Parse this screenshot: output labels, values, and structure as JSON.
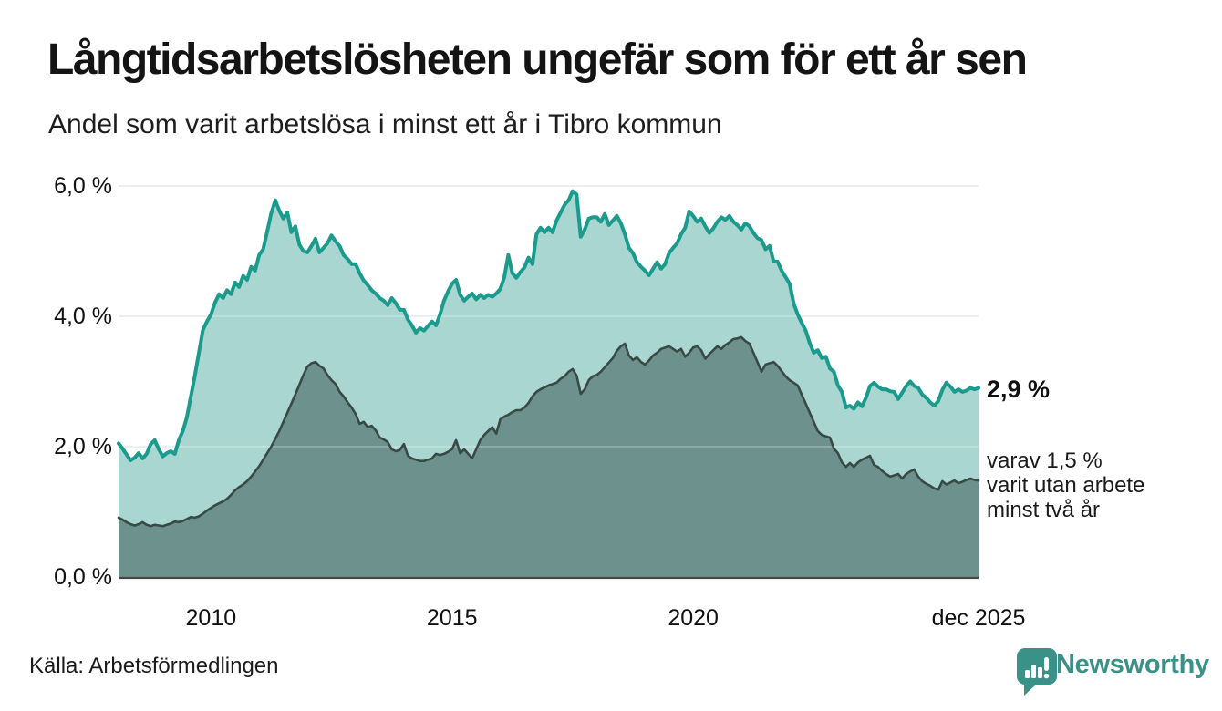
{
  "header": {
    "title": "Långtidsarbetslösheten ungefär som för ett år sen",
    "subtitle": "Andel som varit arbetslösa i minst ett år i Tibro kommun"
  },
  "chart_data": {
    "type": "area",
    "title": "Långtidsarbetslösheten ungefär som för ett år sen",
    "subtitle": "Andel som varit arbetslösa i minst ett år i Tibro kommun",
    "unit": "%",
    "time": {
      "start": "2008-02",
      "end": "2025-12",
      "frequency": "monthly"
    },
    "y_axis": {
      "range": [
        0,
        6.0
      ],
      "ticks": [
        {
          "value": 0,
          "label": "0,0 %"
        },
        {
          "value": 2,
          "label": "2,0 %"
        },
        {
          "value": 4,
          "label": "4,0 %"
        },
        {
          "value": 6,
          "label": "6,0 %"
        }
      ]
    },
    "x_axis": {
      "ticks": [
        {
          "year": 2010,
          "label": "2010"
        },
        {
          "year": 2015,
          "label": "2015"
        },
        {
          "year": 2020,
          "label": "2020"
        },
        {
          "label": "dec 2025",
          "at_end": true
        }
      ]
    },
    "series": [
      {
        "name": "arbetslösa minst ett år",
        "color": "#1a9b8d",
        "fill": "#a9d6d0",
        "stroke_width": 4,
        "end_value": 2.9,
        "values": [
          2.05,
          1.97,
          1.88,
          1.79,
          1.83,
          1.9,
          1.82,
          1.89,
          2.04,
          2.1,
          1.96,
          1.85,
          1.9,
          1.93,
          1.89,
          2.1,
          2.24,
          2.45,
          2.77,
          3.09,
          3.44,
          3.79,
          3.92,
          4.03,
          4.21,
          4.34,
          4.28,
          4.4,
          4.34,
          4.52,
          4.45,
          4.62,
          4.56,
          4.76,
          4.7,
          4.94,
          5.03,
          5.3,
          5.58,
          5.78,
          5.62,
          5.5,
          5.59,
          5.29,
          5.38,
          5.1,
          5.0,
          4.98,
          5.08,
          5.19,
          4.98,
          5.05,
          5.12,
          5.24,
          5.15,
          5.08,
          4.94,
          4.88,
          4.8,
          4.8,
          4.66,
          4.55,
          4.48,
          4.4,
          4.35,
          4.28,
          4.24,
          4.17,
          4.28,
          4.2,
          4.1,
          4.1,
          3.95,
          3.86,
          3.75,
          3.82,
          3.78,
          3.85,
          3.92,
          3.86,
          4.03,
          4.24,
          4.38,
          4.5,
          4.56,
          4.33,
          4.24,
          4.3,
          4.35,
          4.26,
          4.33,
          4.28,
          4.33,
          4.3,
          4.35,
          4.42,
          4.6,
          4.94,
          4.66,
          4.59,
          4.68,
          4.75,
          4.9,
          4.8,
          5.26,
          5.36,
          5.29,
          5.36,
          5.29,
          5.47,
          5.59,
          5.71,
          5.78,
          5.92,
          5.87,
          5.22,
          5.33,
          5.5,
          5.52,
          5.52,
          5.45,
          5.57,
          5.4,
          5.47,
          5.54,
          5.43,
          5.26,
          5.05,
          4.97,
          4.83,
          4.76,
          4.7,
          4.63,
          4.73,
          4.83,
          4.73,
          4.8,
          4.97,
          5.05,
          5.12,
          5.26,
          5.36,
          5.61,
          5.54,
          5.45,
          5.5,
          5.38,
          5.28,
          5.35,
          5.45,
          5.52,
          5.48,
          5.54,
          5.45,
          5.4,
          5.33,
          5.43,
          5.38,
          5.28,
          5.2,
          5.17,
          5.03,
          5.08,
          4.84,
          4.84,
          4.7,
          4.6,
          4.5,
          4.2,
          4.03,
          3.9,
          3.78,
          3.59,
          3.44,
          3.48,
          3.36,
          3.38,
          3.2,
          3.15,
          2.94,
          2.84,
          2.6,
          2.63,
          2.58,
          2.68,
          2.62,
          2.75,
          2.93,
          2.98,
          2.92,
          2.88,
          2.88,
          2.85,
          2.84,
          2.73,
          2.83,
          2.93,
          3.0,
          2.93,
          2.9,
          2.8,
          2.75,
          2.68,
          2.63,
          2.7,
          2.87,
          2.98,
          2.92,
          2.84,
          2.88,
          2.84,
          2.86,
          2.9,
          2.88,
          2.9
        ]
      },
      {
        "name": "arbetslösa minst två år",
        "color": "#394a45",
        "fill": "#6d928d",
        "stroke_width": 2.6,
        "end_value": 1.5,
        "values": [
          0.91,
          0.88,
          0.84,
          0.81,
          0.79,
          0.81,
          0.84,
          0.8,
          0.78,
          0.8,
          0.79,
          0.78,
          0.8,
          0.82,
          0.85,
          0.84,
          0.86,
          0.89,
          0.92,
          0.91,
          0.93,
          0.97,
          1.02,
          1.06,
          1.1,
          1.13,
          1.16,
          1.2,
          1.26,
          1.33,
          1.38,
          1.42,
          1.47,
          1.54,
          1.62,
          1.7,
          1.8,
          1.9,
          2.0,
          2.12,
          2.24,
          2.38,
          2.52,
          2.66,
          2.8,
          2.95,
          3.1,
          3.23,
          3.28,
          3.3,
          3.24,
          3.2,
          3.1,
          3.02,
          2.96,
          2.84,
          2.77,
          2.68,
          2.6,
          2.5,
          2.35,
          2.38,
          2.3,
          2.32,
          2.25,
          2.14,
          2.11,
          2.07,
          1.96,
          1.93,
          1.95,
          2.04,
          1.86,
          1.82,
          1.8,
          1.78,
          1.78,
          1.8,
          1.82,
          1.89,
          1.87,
          1.89,
          1.92,
          1.96,
          2.1,
          1.9,
          1.96,
          1.89,
          1.82,
          1.96,
          2.1,
          2.18,
          2.24,
          2.3,
          2.2,
          2.42,
          2.46,
          2.49,
          2.53,
          2.56,
          2.56,
          2.6,
          2.67,
          2.77,
          2.84,
          2.88,
          2.91,
          2.94,
          2.96,
          2.98,
          3.04,
          3.08,
          3.15,
          3.19,
          3.09,
          2.81,
          2.88,
          3.02,
          3.08,
          3.1,
          3.15,
          3.22,
          3.29,
          3.36,
          3.47,
          3.54,
          3.58,
          3.4,
          3.33,
          3.37,
          3.3,
          3.26,
          3.32,
          3.4,
          3.44,
          3.5,
          3.52,
          3.54,
          3.5,
          3.46,
          3.5,
          3.38,
          3.44,
          3.52,
          3.54,
          3.48,
          3.35,
          3.42,
          3.48,
          3.54,
          3.5,
          3.56,
          3.6,
          3.65,
          3.66,
          3.68,
          3.62,
          3.58,
          3.44,
          3.3,
          3.15,
          3.26,
          3.28,
          3.3,
          3.24,
          3.16,
          3.08,
          3.02,
          2.98,
          2.94,
          2.8,
          2.66,
          2.52,
          2.38,
          2.24,
          2.18,
          2.16,
          2.14,
          1.97,
          1.9,
          1.76,
          1.69,
          1.75,
          1.69,
          1.76,
          1.8,
          1.83,
          1.86,
          1.72,
          1.69,
          1.63,
          1.58,
          1.54,
          1.56,
          1.58,
          1.51,
          1.58,
          1.62,
          1.65,
          1.54,
          1.47,
          1.43,
          1.4,
          1.36,
          1.34,
          1.47,
          1.42,
          1.45,
          1.48,
          1.44,
          1.46,
          1.49,
          1.51,
          1.49,
          1.48
        ]
      }
    ],
    "annotations": {
      "end_value_label": "2,9 %",
      "sub_label_lines": [
        "varav 1,5 %",
        "varit utan arbete",
        "minst två år"
      ]
    },
    "layout_hints": {
      "grid": "horizontal",
      "legend": "none",
      "baseline": "solid-dark"
    }
  },
  "footer": {
    "source": "Källa: Arbetsförmedlingen",
    "brand": "Newsworthy",
    "brand_color": "#3a9188"
  }
}
